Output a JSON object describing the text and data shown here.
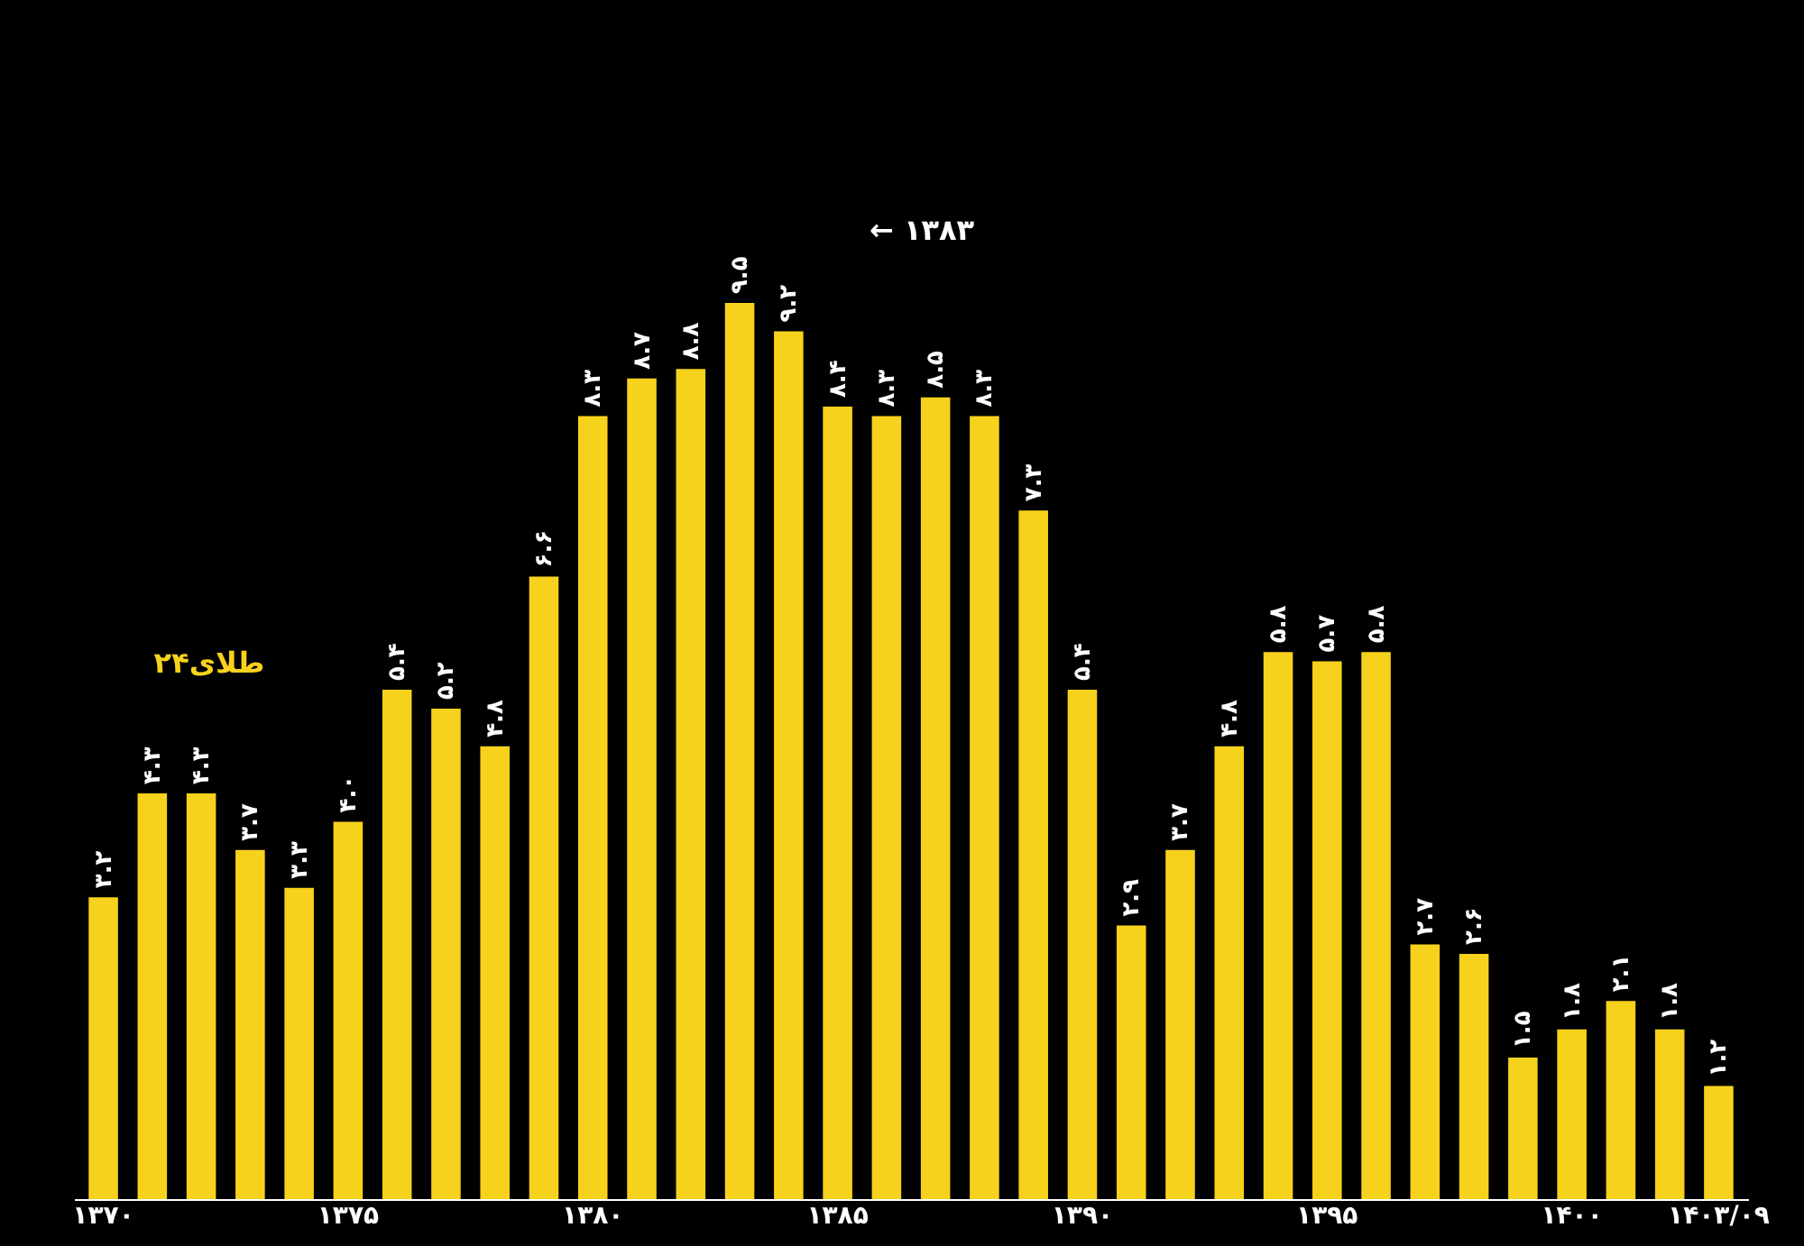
{
  "chart_data": {
    "type": "bar",
    "categories": [
      "۱۳۷۰",
      null,
      null,
      null,
      null,
      "۱۳۷۵",
      null,
      null,
      null,
      null,
      "۱۳۸۰",
      null,
      null,
      null,
      null,
      "۱۳۸۵",
      null,
      null,
      null,
      null,
      "۱۳۹۰",
      null,
      null,
      null,
      null,
      "۱۳۹۵",
      null,
      null,
      null,
      null,
      "۱۴۰۰",
      null,
      null,
      "۱۴۰۳/۰۹"
    ],
    "series": [
      {
        "name": "طلای۲۴",
        "color": "#f7d21c",
        "values": [
          3.2,
          4.3,
          4.3,
          3.7,
          3.3,
          4.0,
          5.4,
          5.2,
          4.8,
          6.6,
          8.3,
          8.7,
          8.8,
          9.5,
          9.2,
          8.4,
          8.3,
          8.5,
          8.3,
          7.3,
          5.4,
          2.9,
          3.7,
          4.8,
          5.8,
          5.7,
          5.8,
          2.7,
          2.6,
          1.5,
          1.8,
          2.1,
          1.8,
          1.2
        ],
        "value_labels": [
          "۳.۲",
          "۴.۳",
          "۴.۳",
          "۳.۷",
          "۳.۳",
          "۴.۰",
          "۵.۴",
          "۵.۲",
          "۴.۸",
          "۶.۶",
          "۸.۳",
          "۸.۷",
          "۸.۸",
          "۹.۵",
          "۹.۲",
          "۸.۴",
          "۸.۳",
          "۸.۵",
          "۸.۳",
          "۷.۳",
          "۵.۴",
          "۲.۹",
          "۳.۷",
          "۴.۸",
          "۵.۸",
          "۵.۷",
          "۵.۸",
          "۲.۷",
          "۲.۶",
          "۱.۵",
          "۱.۸",
          "۲.۱",
          "۱.۸",
          "۱.۲"
        ]
      }
    ],
    "annotations": [
      "← ۱۳۸۳"
    ],
    "grid": false
  }
}
